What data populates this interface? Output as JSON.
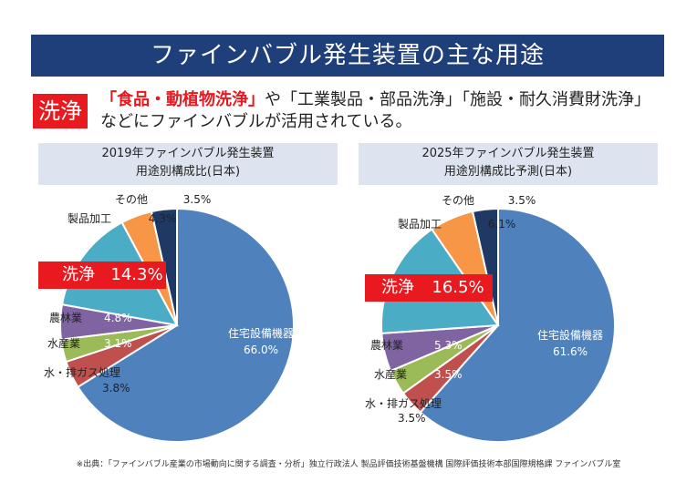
{
  "title": "ファインバブル発生装置の主な用途",
  "tag": "洗浄",
  "intro": {
    "highlight": "「食品・動植物洗浄」",
    "text1": "や「工業製品・部品洗浄」「施設・耐久消費財洗浄」",
    "text2": "などにファインバブルが活用されている。"
  },
  "chart_data": [
    {
      "type": "pie",
      "title_line1": "2019年ファインバブル発生装置",
      "title_line2": "用途別構成比(日本)",
      "slices": [
        {
          "label": "住宅設備機器",
          "value": 66.0,
          "value_text": "66.0%",
          "color": "#4f81bd"
        },
        {
          "label": "水・排ガス処理",
          "value": 3.8,
          "value_text": "3.8%",
          "color": "#c0504d"
        },
        {
          "label": "水産業",
          "value": 3.1,
          "value_text": "3.1%",
          "color": "#9bbb59"
        },
        {
          "label": "農林業",
          "value": 4.8,
          "value_text": "4.8%",
          "color": "#8064a2"
        },
        {
          "label": "洗浄",
          "value": 14.3,
          "value_text": "14.3%",
          "color": "#4bacc6"
        },
        {
          "label": "製品加工",
          "value": 4.3,
          "value_text": "4.3%",
          "color": "#f79646"
        },
        {
          "label": "その他",
          "value": 3.5,
          "value_text": "3.5%",
          "color": "#1f3864"
        }
      ]
    },
    {
      "type": "pie",
      "title_line1": "2025年ファインバブル発生装置",
      "title_line2": "用途別構成比予測(日本)",
      "slices": [
        {
          "label": "住宅設備機器",
          "value": 61.6,
          "value_text": "61.6%",
          "color": "#4f81bd"
        },
        {
          "label": "水・排ガス処理",
          "value": 3.5,
          "value_text": "3.5%",
          "color": "#c0504d"
        },
        {
          "label": "水産業",
          "value": 3.5,
          "value_text": "3.5%",
          "color": "#9bbb59"
        },
        {
          "label": "農林業",
          "value": 5.3,
          "value_text": "5.3%",
          "color": "#8064a2"
        },
        {
          "label": "洗浄",
          "value": 16.5,
          "value_text": "16.5%",
          "color": "#4bacc6"
        },
        {
          "label": "製品加工",
          "value": 6.1,
          "value_text": "6.1%",
          "color": "#f79646"
        },
        {
          "label": "その他",
          "value": 3.5,
          "value_text": "3.5%",
          "color": "#1f3864"
        }
      ]
    }
  ],
  "footnote": "※出典：「ファインバブル産業の市場動向に関する調査・分析」独立行政法人 製品評価技術基盤機構 国際評価技術本部国際規格課 ファインバブル室"
}
